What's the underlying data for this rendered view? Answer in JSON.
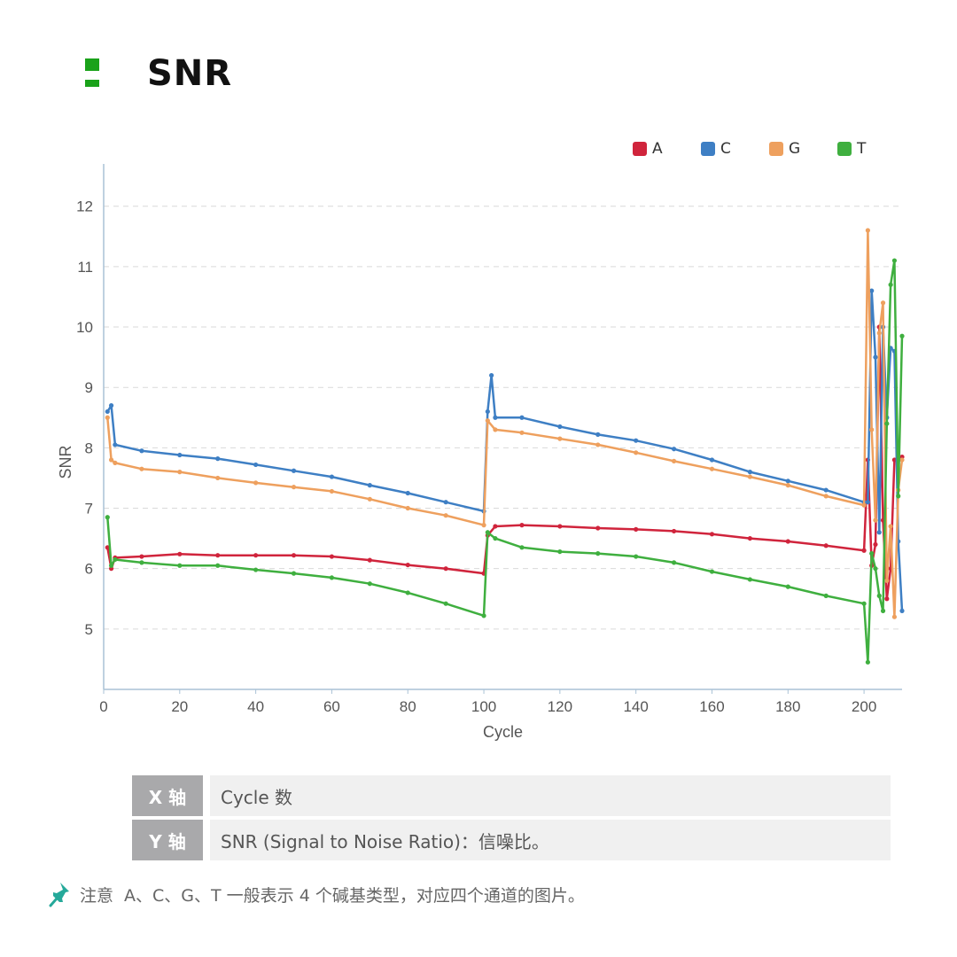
{
  "header": {
    "title": "SNR"
  },
  "colors": {
    "A": "#d0243c",
    "C": "#3e7fc4",
    "G": "#eea05e",
    "T": "#3faf3f",
    "brand": "#1aa21a"
  },
  "legend": [
    {
      "label": "A",
      "color": "#d0243c"
    },
    {
      "label": "C",
      "color": "#3e7fc4"
    },
    {
      "label": "G",
      "color": "#eea05e"
    },
    {
      "label": "T",
      "color": "#3faf3f"
    }
  ],
  "chart_data": {
    "type": "line",
    "xlabel": "Cycle",
    "ylabel": "SNR",
    "xlim": [
      0,
      210
    ],
    "ylim": [
      4,
      12.7
    ],
    "xticks": [
      0,
      20,
      40,
      60,
      80,
      100,
      120,
      140,
      160,
      180,
      200
    ],
    "yticks": [
      5,
      6,
      7,
      8,
      9,
      10,
      11,
      12
    ],
    "grid": "horizontal-dashed",
    "legend_position": "top-right",
    "series": [
      {
        "name": "A",
        "color": "#d0243c",
        "points": [
          [
            1,
            6.35
          ],
          [
            2,
            6.0
          ],
          [
            3,
            6.18
          ],
          [
            10,
            6.2
          ],
          [
            20,
            6.24
          ],
          [
            30,
            6.22
          ],
          [
            40,
            6.22
          ],
          [
            50,
            6.22
          ],
          [
            60,
            6.2
          ],
          [
            70,
            6.14
          ],
          [
            80,
            6.06
          ],
          [
            90,
            6.0
          ],
          [
            100,
            5.92
          ],
          [
            101,
            6.55
          ],
          [
            103,
            6.7
          ],
          [
            110,
            6.72
          ],
          [
            120,
            6.7
          ],
          [
            130,
            6.67
          ],
          [
            140,
            6.65
          ],
          [
            150,
            6.62
          ],
          [
            160,
            6.57
          ],
          [
            170,
            6.5
          ],
          [
            180,
            6.45
          ],
          [
            190,
            6.38
          ],
          [
            200,
            6.3
          ],
          [
            201,
            7.8
          ],
          [
            202,
            6.05
          ],
          [
            203,
            6.4
          ],
          [
            204,
            10.0
          ],
          [
            205,
            6.8
          ],
          [
            206,
            5.5
          ],
          [
            207,
            6.0
          ],
          [
            208,
            7.8
          ],
          [
            209,
            7.8
          ],
          [
            210,
            7.85
          ]
        ]
      },
      {
        "name": "C",
        "color": "#3e7fc4",
        "points": [
          [
            1,
            8.6
          ],
          [
            2,
            8.7
          ],
          [
            3,
            8.05
          ],
          [
            10,
            7.95
          ],
          [
            20,
            7.88
          ],
          [
            30,
            7.82
          ],
          [
            40,
            7.72
          ],
          [
            50,
            7.62
          ],
          [
            60,
            7.52
          ],
          [
            70,
            7.38
          ],
          [
            80,
            7.25
          ],
          [
            90,
            7.1
          ],
          [
            100,
            6.95
          ],
          [
            101,
            8.6
          ],
          [
            102,
            9.2
          ],
          [
            103,
            8.5
          ],
          [
            110,
            8.5
          ],
          [
            120,
            8.35
          ],
          [
            130,
            8.22
          ],
          [
            140,
            8.12
          ],
          [
            150,
            7.98
          ],
          [
            160,
            7.8
          ],
          [
            170,
            7.6
          ],
          [
            180,
            7.45
          ],
          [
            190,
            7.3
          ],
          [
            200,
            7.1
          ],
          [
            201,
            7.1
          ],
          [
            202,
            10.6
          ],
          [
            203,
            9.5
          ],
          [
            204,
            6.6
          ],
          [
            205,
            10.0
          ],
          [
            206,
            8.5
          ],
          [
            207,
            9.65
          ],
          [
            208,
            9.6
          ],
          [
            209,
            6.45
          ],
          [
            210,
            5.3
          ]
        ]
      },
      {
        "name": "G",
        "color": "#eea05e",
        "points": [
          [
            1,
            8.5
          ],
          [
            2,
            7.8
          ],
          [
            3,
            7.75
          ],
          [
            10,
            7.65
          ],
          [
            20,
            7.6
          ],
          [
            30,
            7.5
          ],
          [
            40,
            7.42
          ],
          [
            50,
            7.35
          ],
          [
            60,
            7.28
          ],
          [
            70,
            7.15
          ],
          [
            80,
            7.0
          ],
          [
            90,
            6.88
          ],
          [
            100,
            6.72
          ],
          [
            101,
            8.45
          ],
          [
            103,
            8.3
          ],
          [
            110,
            8.25
          ],
          [
            120,
            8.15
          ],
          [
            130,
            8.05
          ],
          [
            140,
            7.92
          ],
          [
            150,
            7.78
          ],
          [
            160,
            7.65
          ],
          [
            170,
            7.52
          ],
          [
            180,
            7.38
          ],
          [
            190,
            7.2
          ],
          [
            200,
            7.05
          ],
          [
            201,
            11.6
          ],
          [
            202,
            8.3
          ],
          [
            203,
            6.8
          ],
          [
            204,
            9.9
          ],
          [
            205,
            10.4
          ],
          [
            206,
            5.8
          ],
          [
            207,
            6.7
          ],
          [
            208,
            5.2
          ],
          [
            209,
            7.3
          ],
          [
            210,
            7.8
          ]
        ]
      },
      {
        "name": "T",
        "color": "#3faf3f",
        "points": [
          [
            1,
            6.85
          ],
          [
            2,
            6.05
          ],
          [
            3,
            6.15
          ],
          [
            10,
            6.1
          ],
          [
            20,
            6.05
          ],
          [
            30,
            6.05
          ],
          [
            40,
            5.98
          ],
          [
            50,
            5.92
          ],
          [
            60,
            5.85
          ],
          [
            70,
            5.75
          ],
          [
            80,
            5.6
          ],
          [
            90,
            5.42
          ],
          [
            100,
            5.22
          ],
          [
            101,
            6.6
          ],
          [
            103,
            6.5
          ],
          [
            110,
            6.35
          ],
          [
            120,
            6.28
          ],
          [
            130,
            6.25
          ],
          [
            140,
            6.2
          ],
          [
            150,
            6.1
          ],
          [
            160,
            5.95
          ],
          [
            170,
            5.82
          ],
          [
            180,
            5.7
          ],
          [
            190,
            5.55
          ],
          [
            200,
            5.42
          ],
          [
            201,
            4.45
          ],
          [
            202,
            6.25
          ],
          [
            203,
            6.0
          ],
          [
            204,
            5.55
          ],
          [
            205,
            5.3
          ],
          [
            206,
            8.4
          ],
          [
            207,
            10.7
          ],
          [
            208,
            11.1
          ],
          [
            209,
            7.2
          ],
          [
            210,
            9.85
          ]
        ]
      }
    ]
  },
  "axis_table": [
    {
      "key": "X 轴",
      "value": "Cycle 数"
    },
    {
      "key": "Y 轴",
      "value": "SNR (Signal to Noise Ratio)：信噪比。"
    }
  ],
  "note": {
    "label": "注意",
    "text": "A、C、G、T 一般表示 4 个碱基类型，对应四个通道的图片。"
  }
}
